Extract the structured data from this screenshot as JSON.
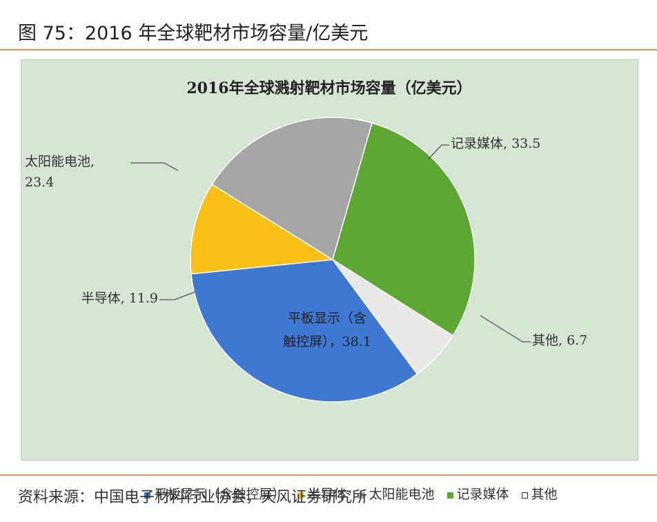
{
  "figure": {
    "caption": "图 75：2016 年全球靶材市场容量/亿美元",
    "source": "资料来源：中国电子材料行业协会，天风证券研究所"
  },
  "chart_data": {
    "type": "pie",
    "title": "2016年全球溅射靶材市场容量（亿美元）",
    "unit": "亿美元",
    "slices": [
      {
        "name": "平板显示（含触控屏）",
        "value": 38.1,
        "label_lines": [
          "平板显示（含",
          "触控屏），38.1"
        ],
        "color": "#3f78d2"
      },
      {
        "name": "半导体",
        "value": 11.9,
        "label_lines": [
          "半导体, 11.9"
        ],
        "color": "#f9c015"
      },
      {
        "name": "太阳能电池",
        "value": 23.4,
        "label_lines": [
          "太阳能电池,",
          "23.4"
        ],
        "color": "#a6a6a6"
      },
      {
        "name": "记录媒体",
        "value": 33.5,
        "label_lines": [
          "记录媒体, 33.5"
        ],
        "color": "#5da832"
      },
      {
        "name": "其他",
        "value": 6.7,
        "label_lines": [
          "其他, 6.7"
        ],
        "color": "#e9e9e9"
      }
    ],
    "legend": {
      "position": "bottom",
      "items": [
        "平板显示（含触控屏）",
        "半导体",
        "太阳能电池",
        "记录媒体",
        "其他"
      ]
    }
  }
}
